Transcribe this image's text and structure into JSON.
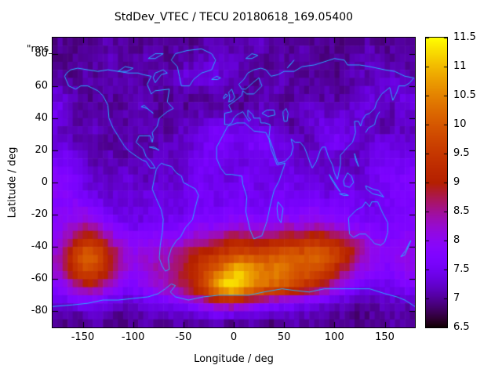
{
  "title": "StdDev_VTEC / TECU 20180618_169.05400",
  "annotation": "\"rms_",
  "axes": {
    "xlabel": "Longitude / deg",
    "ylabel": "Latitude / deg",
    "x_ticks": [
      -150,
      -100,
      -50,
      0,
      50,
      100,
      150
    ],
    "y_ticks": [
      -80,
      -60,
      -40,
      -20,
      0,
      20,
      40,
      60,
      80
    ],
    "x_range": [
      -180,
      180
    ],
    "y_range": [
      -90,
      90
    ]
  },
  "colorbar": {
    "min": 6.5,
    "max": 11.5,
    "ticks": [
      6.5,
      7,
      7.5,
      8,
      8.5,
      9,
      9.5,
      10,
      10.5,
      11,
      11.5
    ],
    "palette": "gnuplot black-purple-red-yellow (rgbformulae 7,5,15)"
  },
  "colors": {
    "coastline": "#29aaff",
    "background": "#ffffff",
    "text": "#000000"
  },
  "chart_data": {
    "type": "heatmap",
    "title": "StdDev_VTEC / TECU 20180618_169.05400",
    "xlabel": "Longitude / deg",
    "ylabel": "Latitude / deg",
    "value_units": "TECU",
    "value_range": [
      6.5,
      11.5
    ],
    "lon_centers_start": -175,
    "lon_step": 10,
    "lat_centers_start": 85,
    "lat_step": -10,
    "values": [
      [
        7.0,
        7.0,
        6.9,
        7.0,
        7.0,
        7.1,
        7.0,
        7.0,
        6.9,
        7.0,
        7.0,
        7.0,
        7.1,
        7.0,
        7.0,
        7.1,
        7.2,
        7.1,
        7.0,
        7.1,
        7.2,
        7.1,
        7.0,
        7.0,
        7.1,
        7.0,
        7.0,
        7.0,
        6.9,
        7.0,
        7.0,
        7.1,
        7.0,
        7.0,
        7.1,
        7.0
      ],
      [
        7.0,
        6.9,
        7.0,
        7.0,
        7.1,
        7.2,
        7.1,
        7.0,
        7.1,
        7.2,
        7.1,
        7.0,
        7.0,
        7.1,
        7.2,
        7.3,
        7.4,
        7.3,
        7.2,
        7.1,
        7.0,
        7.0,
        7.1,
        7.0,
        7.0,
        7.1,
        7.0,
        6.9,
        7.0,
        7.0,
        7.1,
        7.2,
        7.1,
        7.0,
        7.0,
        7.1
      ],
      [
        7.1,
        7.0,
        7.0,
        7.1,
        7.0,
        7.0,
        7.1,
        7.2,
        7.1,
        7.0,
        7.0,
        7.1,
        7.3,
        7.4,
        7.3,
        7.4,
        7.3,
        7.2,
        7.1,
        7.0,
        7.0,
        7.1,
        7.2,
        7.1,
        7.0,
        7.0,
        7.1,
        7.0,
        7.0,
        7.1,
        7.2,
        7.1,
        7.2,
        7.3,
        7.2,
        7.1
      ],
      [
        7.3,
        7.2,
        7.1,
        7.0,
        7.0,
        7.1,
        7.0,
        7.0,
        7.1,
        7.0,
        7.0,
        7.0,
        7.1,
        7.0,
        7.0,
        7.1,
        7.2,
        7.1,
        7.0,
        7.0,
        7.1,
        7.2,
        7.1,
        7.0,
        7.1,
        7.0,
        7.0,
        7.1,
        7.0,
        7.0,
        7.2,
        7.4,
        7.3,
        7.2,
        7.4,
        7.3
      ],
      [
        7.5,
        7.3,
        7.1,
        7.0,
        7.1,
        7.0,
        7.0,
        7.1,
        7.2,
        7.1,
        7.0,
        7.0,
        7.1,
        7.0,
        7.1,
        7.0,
        7.0,
        7.1,
        7.0,
        7.1,
        7.2,
        7.1,
        7.0,
        7.1,
        7.2,
        7.3,
        7.2,
        7.1,
        7.2,
        7.3,
        7.4,
        7.3,
        7.2,
        7.1,
        7.2,
        7.4
      ],
      [
        7.3,
        7.1,
        7.0,
        7.1,
        7.2,
        7.1,
        7.0,
        7.0,
        7.1,
        7.2,
        7.1,
        7.0,
        7.1,
        7.2,
        7.3,
        7.4,
        7.5,
        7.4,
        7.3,
        7.4,
        7.3,
        7.2,
        7.1,
        7.0,
        7.1,
        7.2,
        7.4,
        7.5,
        7.4,
        7.3,
        7.2,
        7.1,
        7.0,
        7.1,
        7.2,
        7.1
      ],
      [
        7.3,
        7.2,
        7.1,
        7.2,
        7.1,
        7.0,
        7.1,
        7.2,
        7.1,
        7.0,
        7.1,
        7.2,
        7.3,
        7.2,
        7.4,
        7.6,
        7.7,
        7.6,
        7.5,
        7.6,
        7.7,
        7.6,
        7.5,
        7.3,
        7.2,
        7.1,
        7.3,
        7.5,
        7.6,
        7.4,
        7.2,
        7.3,
        7.4,
        7.3,
        7.4,
        7.3
      ],
      [
        7.5,
        7.6,
        7.4,
        7.2,
        7.1,
        7.2,
        7.1,
        7.0,
        7.1,
        7.2,
        7.3,
        7.2,
        7.1,
        7.3,
        7.5,
        7.6,
        7.5,
        7.4,
        7.3,
        7.4,
        7.5,
        7.5,
        7.4,
        7.3,
        7.2,
        7.3,
        7.2,
        7.3,
        7.2,
        7.1,
        7.2,
        7.3,
        7.5,
        7.6,
        7.5,
        7.4
      ],
      [
        7.8,
        7.7,
        7.5,
        7.3,
        7.2,
        7.1,
        7.2,
        7.3,
        7.2,
        7.1,
        7.2,
        7.3,
        7.2,
        7.4,
        7.6,
        7.5,
        7.4,
        7.3,
        7.5,
        7.6,
        7.5,
        7.3,
        7.4,
        7.5,
        7.4,
        7.3,
        7.2,
        7.3,
        7.4,
        7.3,
        7.2,
        7.4,
        7.6,
        7.7,
        7.6,
        7.8
      ],
      [
        7.9,
        7.8,
        7.6,
        7.4,
        7.3,
        7.2,
        7.3,
        7.2,
        7.3,
        7.4,
        7.3,
        7.2,
        7.3,
        7.5,
        7.6,
        7.5,
        7.4,
        7.5,
        7.6,
        7.5,
        7.4,
        7.5,
        7.6,
        7.5,
        7.4,
        7.5,
        7.4,
        7.3,
        7.4,
        7.5,
        7.4,
        7.3,
        7.5,
        7.6,
        7.7,
        7.8
      ],
      [
        7.8,
        7.9,
        8.0,
        7.8,
        7.6,
        7.4,
        7.3,
        7.4,
        7.3,
        7.4,
        7.5,
        7.4,
        7.3,
        7.4,
        7.5,
        7.6,
        7.5,
        7.6,
        7.7,
        7.6,
        7.5,
        7.6,
        7.7,
        7.6,
        7.7,
        7.8,
        7.7,
        7.6,
        7.7,
        7.6,
        7.5,
        7.4,
        7.5,
        7.6,
        7.7,
        7.6
      ],
      [
        7.9,
        8.0,
        8.2,
        8.3,
        8.1,
        7.8,
        7.6,
        7.5,
        7.4,
        7.5,
        7.6,
        7.5,
        7.6,
        7.7,
        7.8,
        7.7,
        7.8,
        7.9,
        8.0,
        7.9,
        7.8,
        7.9,
        8.0,
        8.1,
        8.0,
        8.1,
        8.2,
        8.0,
        7.9,
        7.8,
        7.7,
        7.6,
        7.5,
        7.6,
        7.7,
        7.8
      ],
      [
        8.0,
        8.4,
        9.0,
        9.4,
        9.1,
        8.5,
        8.1,
        7.9,
        7.8,
        7.9,
        8.0,
        7.9,
        8.0,
        8.2,
        8.4,
        8.5,
        8.6,
        8.8,
        8.9,
        8.8,
        8.7,
        8.9,
        9.0,
        9.1,
        9.0,
        9.2,
        9.3,
        9.1,
        8.9,
        8.6,
        8.3,
        8.0,
        7.9,
        7.8,
        7.9,
        8.0
      ],
      [
        8.3,
        9.0,
        9.8,
        10.2,
        9.9,
        9.3,
        8.6,
        8.2,
        8.1,
        8.2,
        8.3,
        8.4,
        8.6,
        8.9,
        9.1,
        9.3,
        9.5,
        9.7,
        9.9,
        9.8,
        9.7,
        9.9,
        10.0,
        10.1,
        10.0,
        10.2,
        10.1,
        9.9,
        9.6,
        9.2,
        8.6,
        8.2,
        8.0,
        7.9,
        8.0,
        8.1
      ],
      [
        8.2,
        8.8,
        9.5,
        9.9,
        9.6,
        9.0,
        8.4,
        8.1,
        8.0,
        8.2,
        8.4,
        8.5,
        8.7,
        9.0,
        9.4,
        9.8,
        10.3,
        10.8,
        11.2,
        11.0,
        10.6,
        10.4,
        10.5,
        10.3,
        10.1,
        10.0,
        9.8,
        9.4,
        8.9,
        8.4,
        8.1,
        7.9,
        7.8,
        7.7,
        7.9,
        8.0
      ],
      [
        7.8,
        8.1,
        8.5,
        8.8,
        8.6,
        8.2,
        7.9,
        7.7,
        7.8,
        8.0,
        8.2,
        8.4,
        8.6,
        8.9,
        9.4,
        10.2,
        11.0,
        11.5,
        11.3,
        10.8,
        10.4,
        10.2,
        10.0,
        9.8,
        9.5,
        9.2,
        8.9,
        8.5,
        8.1,
        7.8,
        7.6,
        7.5,
        7.4,
        7.5,
        7.6,
        7.7
      ],
      [
        7.3,
        7.4,
        7.5,
        7.6,
        7.5,
        7.4,
        7.3,
        7.2,
        7.3,
        7.4,
        7.5,
        7.6,
        7.7,
        7.8,
        8.0,
        8.3,
        8.6,
        8.8,
        8.6,
        8.3,
        8.1,
        7.9,
        7.8,
        7.7,
        7.6,
        7.5,
        7.4,
        7.3,
        7.2,
        7.1,
        7.0,
        7.0,
        7.1,
        7.2,
        7.1,
        7.2
      ],
      [
        7.0,
        7.0,
        6.9,
        7.0,
        7.1,
        7.0,
        6.9,
        7.0,
        7.0,
        7.1,
        7.0,
        7.0,
        7.1,
        7.0,
        7.1,
        7.2,
        7.1,
        7.0,
        7.0,
        7.1,
        7.0,
        6.9,
        7.0,
        7.0,
        7.1,
        7.0,
        7.0,
        6.9,
        7.0,
        7.0,
        6.9,
        7.0,
        7.0,
        7.1,
        7.0,
        7.0
      ]
    ]
  },
  "coastlines": [
    [
      -168,
      66,
      -164,
      60,
      -157,
      58,
      -152,
      60,
      -145,
      60,
      -135,
      57,
      -130,
      54,
      -125,
      48,
      -124,
      40,
      -120,
      34,
      -114,
      28,
      -109,
      23,
      -105,
      20,
      -96,
      16,
      -91,
      14,
      -87,
      13,
      -83,
      9,
      -78,
      9,
      -82,
      13,
      -87,
      16,
      -90,
      21,
      -97,
      25,
      -94,
      29,
      -89,
      29,
      -83,
      29,
      -81,
      25,
      -80,
      28,
      -81,
      31,
      -76,
      35,
      -74,
      40,
      -70,
      42,
      -66,
      44,
      -60,
      46,
      -66,
      50,
      -64,
      58,
      -78,
      57,
      -82,
      55,
      -86,
      61,
      -82,
      66,
      -90,
      67,
      -95,
      68,
      -105,
      68,
      -115,
      69,
      -125,
      70,
      -135,
      69,
      -145,
      70,
      -155,
      71,
      -162,
      70,
      -166,
      68,
      -168,
      66
    ],
    [
      -77,
      8,
      -79,
      2,
      -81,
      -4,
      -77,
      -10,
      -72,
      -17,
      -70,
      -23,
      -71,
      -31,
      -73,
      -39,
      -74,
      -47,
      -71,
      -52,
      -68,
      -55,
      -64,
      -54,
      -65,
      -47,
      -62,
      -41,
      -57,
      -36,
      -53,
      -34,
      -48,
      -28,
      -41,
      -23,
      -38,
      -15,
      -35,
      -8,
      -38,
      -4,
      -44,
      -2,
      -50,
      0,
      -52,
      4,
      -57,
      6,
      -62,
      10,
      -68,
      11,
      -72,
      12,
      -75,
      10,
      -77,
      8
    ],
    [
      -52,
      60,
      -44,
      60,
      -40,
      64,
      -32,
      68,
      -22,
      70,
      -18,
      76,
      -22,
      80,
      -32,
      83,
      -46,
      82,
      -58,
      80,
      -62,
      76,
      -56,
      72,
      -54,
      66,
      -52,
      60
    ],
    [
      -6,
      35,
      3,
      37,
      11,
      37,
      20,
      32,
      32,
      31,
      35,
      27,
      37,
      21,
      43,
      11,
      51,
      12,
      45,
      1,
      40,
      -5,
      36,
      -15,
      33,
      -24,
      28,
      -33,
      20,
      -35,
      16,
      -29,
      12,
      -18,
      13,
      -9,
      9,
      -1,
      8,
      4,
      -2,
      5,
      -8,
      5,
      -13,
      9,
      -17,
      15,
      -17,
      22,
      -11,
      29,
      -6,
      35
    ],
    [
      -9,
      36,
      -9,
      43,
      -2,
      44,
      -5,
      48,
      2,
      51,
      8,
      54,
      9,
      57,
      13,
      55,
      20,
      55,
      28,
      60,
      25,
      65,
      19,
      62,
      12,
      58,
      8,
      58,
      5,
      61,
      10,
      64,
      14,
      68,
      20,
      70,
      27,
      71,
      32,
      70,
      37,
      66,
      44,
      67,
      50,
      69,
      60,
      69,
      68,
      72,
      80,
      73,
      90,
      75,
      100,
      77,
      110,
      76,
      113,
      73,
      125,
      73,
      135,
      72,
      150,
      70,
      160,
      69,
      170,
      66,
      179,
      65,
      175,
      62,
      170,
      60,
      164,
      60,
      162,
      56,
      158,
      51,
      155,
      59,
      147,
      55,
      142,
      50,
      140,
      46,
      135,
      43,
      131,
      42,
      128,
      39,
      126,
      35,
      124,
      38,
      120,
      38,
      121,
      31,
      118,
      25,
      113,
      22,
      109,
      19,
      106,
      17,
      106,
      11,
      103,
      2,
      100,
      6,
      98,
      11,
      94,
      16,
      91,
      22,
      88,
      22,
      86,
      20,
      82,
      13,
      78,
      9,
      76,
      12,
      72,
      19,
      70,
      22,
      66,
      25,
      61,
      25,
      57,
      27,
      59,
      22,
      57,
      17,
      51,
      13,
      44,
      12,
      42,
      15,
      39,
      21,
      35,
      28,
      36,
      34,
      36,
      36,
      31,
      37,
      27,
      37,
      26,
      40,
      23,
      40,
      20,
      40,
      19,
      42,
      14,
      45,
      14,
      41,
      17,
      39,
      15,
      38,
      11,
      42,
      9,
      44,
      6,
      43,
      3,
      42,
      0,
      40,
      -2,
      37,
      -5,
      36,
      -9,
      36
    ],
    [
      114,
      -22,
      115,
      -32,
      119,
      -34,
      125,
      -32,
      131,
      -32,
      136,
      -35,
      140,
      -38,
      146,
      -39,
      150,
      -37,
      153,
      -31,
      153,
      -25,
      148,
      -19,
      143,
      -12,
      137,
      -12,
      135,
      -15,
      131,
      -12,
      128,
      -15,
      122,
      -17,
      117,
      -20,
      114,
      -22
    ],
    [
      -180,
      -77,
      -160,
      -76,
      -145,
      -75,
      -130,
      -73,
      -115,
      -73,
      -100,
      -72,
      -85,
      -71,
      -75,
      -69,
      -68,
      -66,
      -62,
      -63,
      -58,
      -64,
      -63,
      -68,
      -58,
      -71,
      -45,
      -73,
      -30,
      -71,
      -15,
      -70,
      0,
      -70,
      15,
      -70,
      30,
      -68,
      48,
      -66,
      60,
      -67,
      75,
      -68,
      90,
      -66,
      105,
      -66,
      120,
      -66,
      135,
      -66,
      150,
      -69,
      162,
      -71,
      170,
      -73,
      180,
      -77
    ],
    [
      44,
      -12,
      49,
      -16,
      47,
      -25,
      44,
      -22,
      43,
      -16,
      44,
      -12
    ],
    [
      -5,
      50,
      -4,
      53,
      -5,
      56,
      -2,
      58,
      1,
      53,
      -1,
      51,
      -5,
      50
    ],
    [
      -10,
      52,
      -6,
      54,
      -8,
      55,
      -10,
      53,
      -10,
      52
    ],
    [
      131,
      31,
      134,
      34,
      137,
      35,
      140,
      36,
      141,
      39,
      143,
      42,
      145,
      44
    ],
    [
      -22,
      64,
      -16,
      64,
      -13,
      65,
      -17,
      66,
      -22,
      64
    ],
    [
      166,
      -46,
      170,
      -45,
      172,
      -42,
      174,
      -39,
      176,
      -36,
      174,
      -38,
      171,
      -42,
      166,
      -46
    ],
    [
      131,
      -2,
      138,
      -4,
      144,
      -5,
      149,
      -9,
      145,
      -8,
      138,
      -7,
      132,
      -4,
      131,
      -2
    ],
    [
      109,
      1,
      113,
      6,
      117,
      4,
      119,
      0,
      115,
      -3,
      110,
      -2,
      109,
      1
    ],
    [
      95,
      5,
      100,
      0,
      104,
      -4,
      106,
      -6,
      102,
      -3,
      97,
      2,
      95,
      5
    ],
    [
      105,
      -7,
      110,
      -7,
      114,
      -8,
      109,
      -8,
      105,
      -7
    ],
    [
      120,
      18,
      122,
      14,
      124,
      10,
      121,
      14,
      120,
      18
    ],
    [
      -84,
      22,
      -79,
      22,
      -74,
      20,
      -78,
      21,
      -84,
      22
    ],
    [
      -78,
      62,
      -72,
      67,
      -66,
      68,
      -70,
      70,
      -78,
      68,
      -80,
      65,
      -78,
      62
    ],
    [
      -115,
      69,
      -108,
      72,
      -100,
      71,
      -106,
      69,
      -115,
      69
    ],
    [
      -85,
      77,
      -78,
      80,
      -70,
      80,
      -78,
      77,
      -85,
      77
    ],
    [
      12,
      77,
      18,
      80,
      24,
      79,
      18,
      77,
      12,
      77
    ],
    [
      53,
      71,
      57,
      74,
      60,
      76,
      56,
      73,
      53,
      71
    ],
    [
      28,
      43,
      33,
      45,
      40,
      45,
      41,
      42,
      34,
      41,
      28,
      43
    ],
    [
      49,
      44,
      52,
      46,
      54,
      43,
      53,
      38,
      50,
      38,
      49,
      42,
      49,
      44
    ],
    [
      -92,
      47,
      -86,
      46,
      -80,
      43,
      -84,
      45,
      -89,
      48,
      -92,
      47
    ]
  ]
}
